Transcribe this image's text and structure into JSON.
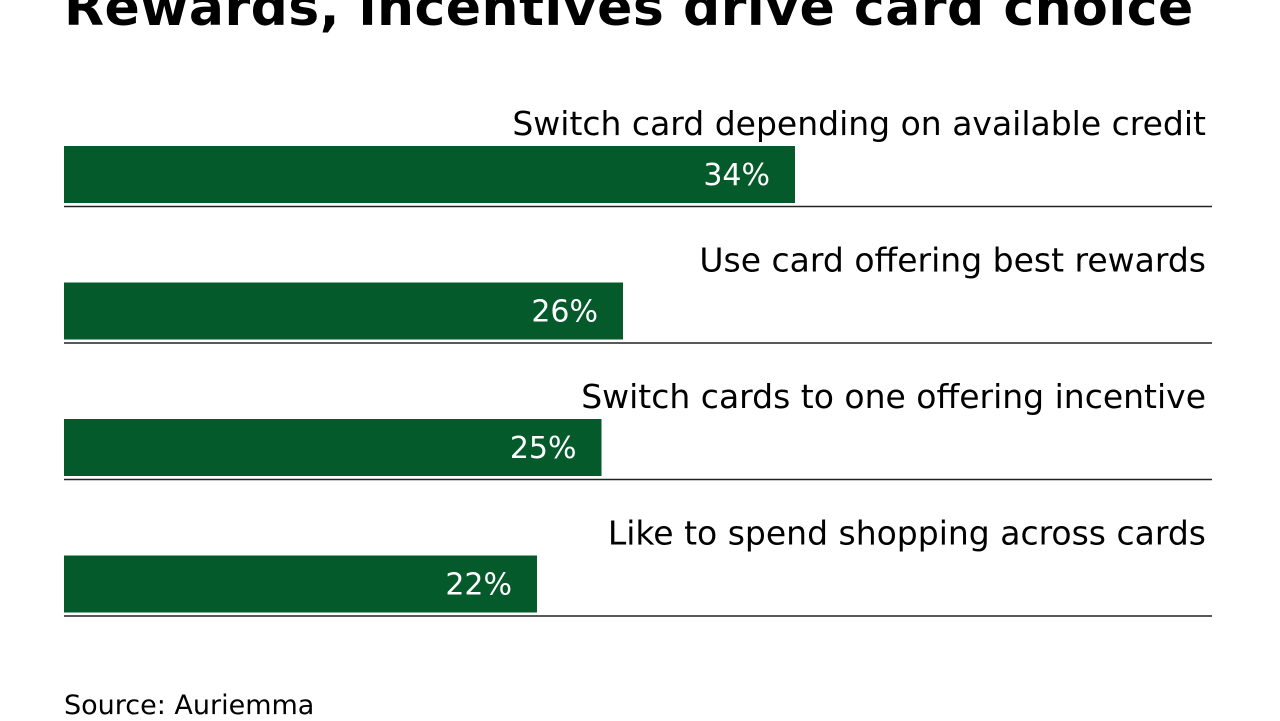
{
  "chart_data": {
    "type": "bar",
    "orientation": "horizontal",
    "title": "Rewards, incentives drive card choice",
    "categories": [
      "Switch card depending on available credit",
      "Use card offering best rewards",
      "Switch cards to one offering incentive",
      "Like to spend shopping across cards"
    ],
    "values": [
      34,
      26,
      25,
      22
    ],
    "value_labels": [
      "34%",
      "26%",
      "25%",
      "22%"
    ],
    "unit": "%",
    "xlim": [
      0,
      53.4
    ],
    "grid": false,
    "legend": "none",
    "bar_color": "#045a2a",
    "source": "Source: Auriemma"
  }
}
